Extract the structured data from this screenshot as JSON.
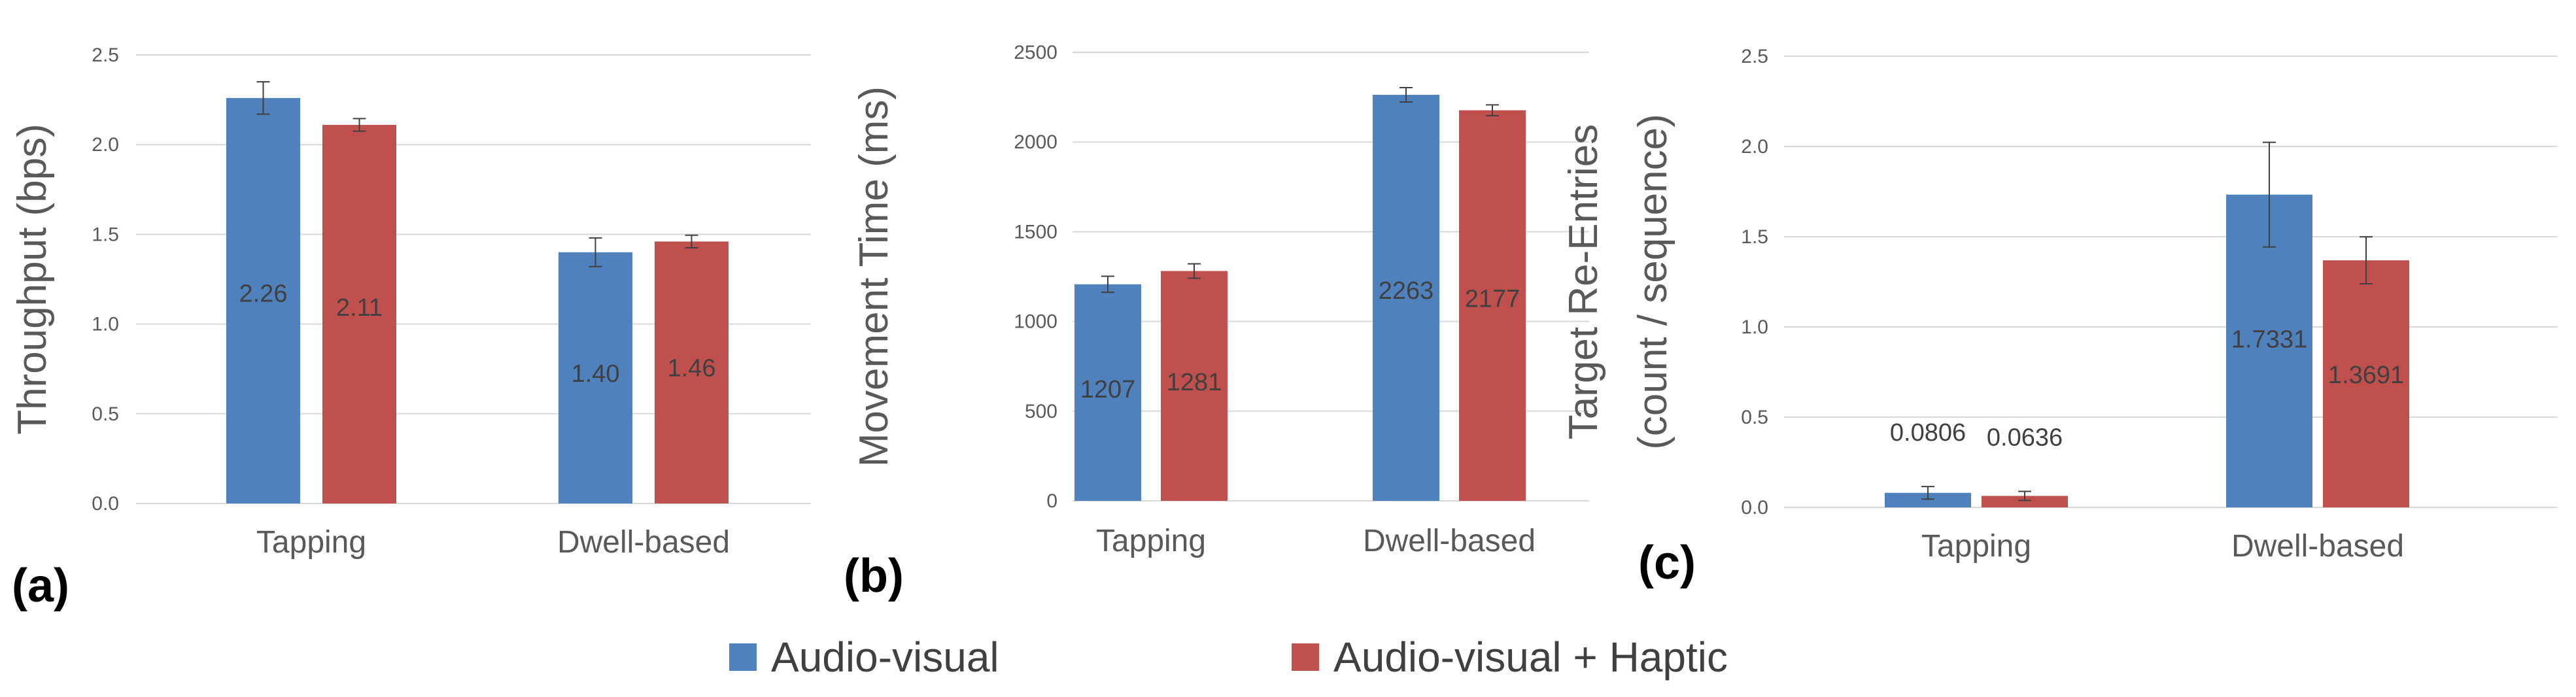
{
  "chart_data": [
    {
      "type": "bar",
      "panel_label": "(a)",
      "ylabel": "Throughput (bps)",
      "categories": [
        "Tapping",
        "Dwell-based"
      ],
      "ylim": [
        0,
        2.5
      ],
      "yticks": [
        "0.0",
        "0.5",
        "1.0",
        "1.5",
        "2.0",
        "2.5"
      ],
      "ytick_values": [
        0,
        0.5,
        1.0,
        1.5,
        2.0,
        2.5
      ],
      "grid": true,
      "series": [
        {
          "name": "Audio-visual",
          "values": [
            2.26,
            1.4
          ],
          "errors": [
            0.09,
            0.08
          ],
          "labels": [
            "2.26",
            "1.40"
          ],
          "color": "#4F81BD"
        },
        {
          "name": "Audio-visual + Haptic",
          "values": [
            2.11,
            1.46
          ],
          "errors": [
            0.035,
            0.035
          ],
          "labels": [
            "2.11",
            "1.46"
          ],
          "color": "#C0504D"
        }
      ]
    },
    {
      "type": "bar",
      "panel_label": "(b)",
      "ylabel": "Movement Time (ms)",
      "categories": [
        "Tapping",
        "Dwell-based"
      ],
      "ylim": [
        0,
        2500
      ],
      "yticks": [
        "0",
        "500",
        "1000",
        "1500",
        "2000",
        "2500"
      ],
      "ytick_values": [
        0,
        500,
        1000,
        1500,
        2000,
        2500
      ],
      "grid": true,
      "series": [
        {
          "name": "Audio-visual",
          "values": [
            1207,
            2263
          ],
          "errors": [
            45,
            40
          ],
          "labels": [
            "1207",
            "2263"
          ],
          "color": "#4F81BD"
        },
        {
          "name": "Audio-visual + Haptic",
          "values": [
            1281,
            2177
          ],
          "errors": [
            40,
            30
          ],
          "labels": [
            "1281",
            "2177"
          ],
          "color": "#C0504D"
        }
      ]
    },
    {
      "type": "bar",
      "panel_label": "(c)",
      "ylabel": [
        "Target Re-Entries",
        "(count / sequence)"
      ],
      "categories": [
        "Tapping",
        "Dwell-based"
      ],
      "ylim": [
        0,
        2.5
      ],
      "yticks": [
        "0.0",
        "0.5",
        "1.0",
        "1.5",
        "2.0",
        "2.5"
      ],
      "ytick_values": [
        0,
        0.5,
        1.0,
        1.5,
        2.0,
        2.5
      ],
      "grid": true,
      "series": [
        {
          "name": "Audio-visual",
          "values": [
            0.0806,
            1.7331
          ],
          "errors": [
            0.035,
            0.29
          ],
          "labels": [
            "0.0806",
            "1.7331"
          ],
          "color": "#4F81BD"
        },
        {
          "name": "Audio-visual + Haptic",
          "values": [
            0.0636,
            1.3691
          ],
          "errors": [
            0.025,
            0.13
          ],
          "labels": [
            "0.0636",
            "1.3691"
          ],
          "color": "#C0504D"
        }
      ]
    }
  ],
  "legend": {
    "items": [
      {
        "name": "Audio-visual",
        "color": "#4F81BD"
      },
      {
        "name": "Audio-visual + Haptic",
        "color": "#C0504D"
      }
    ]
  },
  "colors": {
    "grid": "#D9D9D9",
    "text": "#595959",
    "axis_title": "#595959",
    "data_label": "#404040",
    "panel_label": "#000000"
  }
}
